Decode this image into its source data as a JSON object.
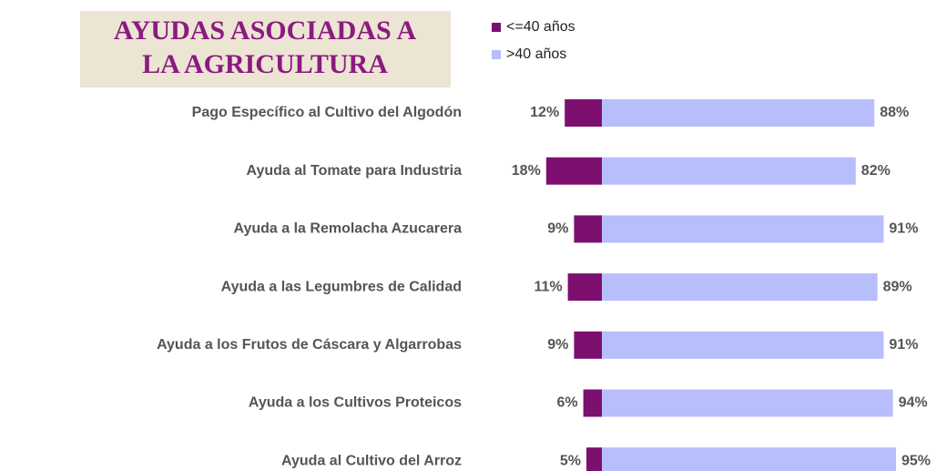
{
  "chart_data": {
    "type": "diverging_bar",
    "title": [
      "AYUDAS ASOCIADAS A",
      "LA AGRICULTURA"
    ],
    "categories": [
      "Pago Específico al Cultivo del Algodón",
      "Ayuda al Tomate para Industria",
      "Ayuda a la Remolacha Azucarera",
      "Ayuda a las Legumbres de Calidad",
      "Ayuda a los Frutos de Cáscara y Algarrobas",
      "Ayuda a los Cultivos Proteicos",
      "Ayuda al Cultivo del Arroz"
    ],
    "series": [
      {
        "name": "<=40 años",
        "color": "#7d0f6f",
        "values": [
          12,
          18,
          9,
          11,
          9,
          6,
          5
        ],
        "value_labels": [
          "12%",
          "18%",
          "9%",
          "11%",
          "9%",
          "6%",
          "5%"
        ]
      },
      {
        "name": ">40 años",
        "color": "#b8bdfb",
        "values": [
          88,
          82,
          91,
          89,
          91,
          94,
          95
        ],
        "value_labels": [
          "88%",
          "82%",
          "91%",
          "89%",
          "91%",
          "94%",
          "95%"
        ]
      }
    ],
    "legend": "top"
  }
}
